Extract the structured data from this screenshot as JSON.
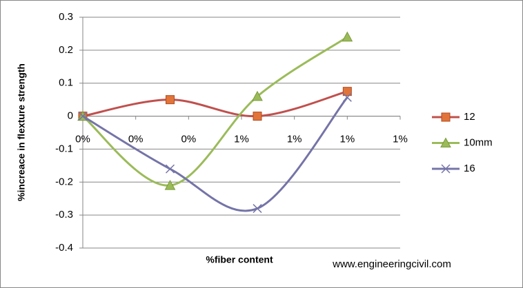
{
  "chart_data": {
    "type": "line",
    "x_label": "%fiber content",
    "y_label": "%increace in flexture strength",
    "watermark": "www.engineeringcivil.com",
    "x": [
      0,
      0.33,
      0.66,
      1.0
    ],
    "xlim": [
      0,
      1.2
    ],
    "xticks": [
      {
        "value": 0,
        "label": "0%"
      },
      {
        "value": 0.2,
        "label": "0%"
      },
      {
        "value": 0.4,
        "label": "0%"
      },
      {
        "value": 0.6,
        "label": "1%"
      },
      {
        "value": 0.8,
        "label": "1%"
      },
      {
        "value": 1.0,
        "label": "1%"
      },
      {
        "value": 1.2,
        "label": "1%"
      }
    ],
    "ylim": [
      -0.4,
      0.3
    ],
    "yticks": [
      -0.4,
      -0.3,
      -0.2,
      -0.1,
      0,
      0.1,
      0.2,
      0.3
    ],
    "grid": true,
    "smooth": true,
    "legend": "right",
    "series": [
      {
        "name": "12",
        "color": "#c0504d",
        "marker": "square",
        "values": [
          0,
          0.05,
          0,
          0.075
        ]
      },
      {
        "name": "10mm",
        "color": "#9bbb59",
        "marker": "triangle",
        "values": [
          0,
          -0.21,
          0.06,
          0.24
        ]
      },
      {
        "name": "16",
        "color": "#7474a8",
        "marker": "x",
        "values": [
          0,
          -0.16,
          -0.28,
          0.057
        ]
      }
    ]
  }
}
